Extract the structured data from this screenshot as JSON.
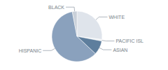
{
  "chart_data": {
    "type": "pie",
    "categories": [
      "WHITE",
      "PACIFIC ISL",
      "ASIAN",
      "HISPANIC",
      "BLACK"
    ],
    "values": [
      27,
      1,
      9,
      60,
      3
    ],
    "colors": [
      "#dfe4eb",
      "#eef1f4",
      "#5e7e9d",
      "#8aa1bd",
      "#c9d0d9"
    ]
  }
}
